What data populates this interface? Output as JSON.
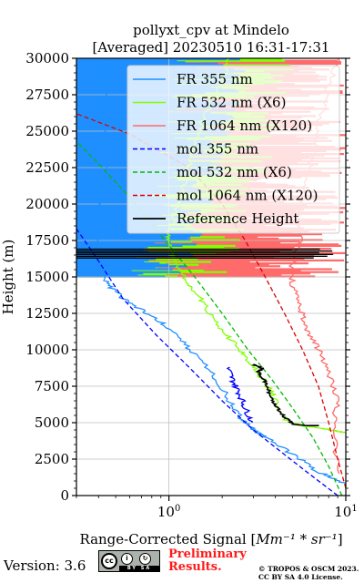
{
  "chart_data": {
    "type": "line",
    "title": "pollyxt_cpv at Mindelo",
    "subtitle": "[Averaged] 20230510 16:31-17:31",
    "xlabel": "Range-Corrected Signal [",
    "xlabel_math": "Mm⁻¹ * sr⁻¹",
    "xlabel_close": "]",
    "ylabel": "Height (m)",
    "xscale": "log",
    "xlim": [
      0.3,
      10
    ],
    "ylim": [
      0,
      30000
    ],
    "x_ticks": [
      {
        "base": "10",
        "exp": "0",
        "value": 1
      },
      {
        "base": "10",
        "exp": "1",
        "value": 10
      }
    ],
    "y_ticks": [
      "0",
      "2500",
      "5000",
      "7500",
      "10000",
      "12500",
      "15000",
      "17500",
      "20000",
      "22500",
      "25000",
      "27500",
      "30000"
    ],
    "grid": true,
    "legend_position": "top-right",
    "colors": {
      "fr355": "#1f8fff",
      "fr532": "#80ff00",
      "fr1064": "#ff6a6a",
      "mol355": "#0000ff",
      "mol532": "#00bb00",
      "mol1064": "#dd0000",
      "reference": "#000000"
    },
    "series": [
      {
        "name": "FR 355 nm",
        "key": "fr355",
        "style": "solid",
        "points": [
          [
            10,
            800
          ],
          [
            7,
            1600
          ],
          [
            5,
            2800
          ],
          [
            3.5,
            4000
          ],
          [
            3,
            4500
          ],
          [
            2.6,
            5200
          ],
          [
            2.2,
            6500
          ],
          [
            1.8,
            8200
          ],
          [
            1.3,
            10000
          ],
          [
            1.0,
            11500
          ],
          [
            0.75,
            12500
          ],
          [
            0.55,
            13500
          ],
          [
            0.45,
            14500
          ],
          [
            0.4,
            15500
          ],
          [
            0.38,
            16500
          ],
          [
            0.4,
            18000
          ],
          [
            0.42,
            20000
          ],
          [
            0.45,
            22000
          ],
          [
            0.45,
            24000
          ],
          [
            0.45,
            26000
          ],
          [
            0.45,
            28000
          ],
          [
            0.45,
            30000
          ]
        ]
      },
      {
        "name": "FR 532 nm (X6)",
        "key": "fr532",
        "style": "solid",
        "points": [
          [
            10,
            4300
          ],
          [
            7.5,
            4600
          ],
          [
            5.5,
            4800
          ],
          [
            4.5,
            5200
          ],
          [
            4,
            6500
          ],
          [
            3.5,
            7800
          ],
          [
            3,
            8800
          ],
          [
            2.6,
            9800
          ],
          [
            2.1,
            11000
          ],
          [
            1.7,
            12500
          ],
          [
            1.4,
            14000
          ],
          [
            1.2,
            15000
          ],
          [
            1.1,
            16000
          ],
          [
            1.0,
            17000
          ],
          [
            1.0,
            18000
          ],
          [
            1.1,
            19500
          ],
          [
            1.2,
            21000
          ],
          [
            1.3,
            22500
          ],
          [
            1.4,
            24000
          ],
          [
            1.6,
            26000
          ],
          [
            1.9,
            28000
          ],
          [
            2.2,
            30000
          ]
        ]
      },
      {
        "name": "FR 1064 nm (X120)",
        "key": "fr1064",
        "style": "solid",
        "points": [
          [
            9,
            1500
          ],
          [
            8.5,
            4500
          ],
          [
            9,
            6500
          ],
          [
            8,
            8500
          ],
          [
            7,
            10000
          ],
          [
            6,
            11500
          ],
          [
            5.5,
            13000
          ],
          [
            5,
            14500
          ],
          [
            5,
            16000
          ],
          [
            5.5,
            17500
          ],
          [
            5.5,
            19500
          ],
          [
            6,
            21500
          ],
          [
            6.5,
            23500
          ],
          [
            7,
            25500
          ],
          [
            8,
            28000
          ],
          [
            9,
            30000
          ]
        ]
      },
      {
        "name": "mol 355 nm",
        "key": "mol355",
        "style": "dashed",
        "points": [
          [
            9,
            0
          ],
          [
            6.2,
            1500
          ],
          [
            4.3,
            3000
          ],
          [
            3.0,
            4500
          ],
          [
            2.0,
            6500
          ],
          [
            1.3,
            8800
          ],
          [
            0.85,
            11000
          ],
          [
            0.55,
            13500
          ],
          [
            0.38,
            16500
          ],
          [
            0.3,
            18300
          ]
        ]
      },
      {
        "name": "mol 532 nm (X6)",
        "key": "mol532",
        "style": "dashed",
        "points": [
          [
            9.5,
            0
          ],
          [
            8,
            2000
          ],
          [
            6.5,
            4000
          ],
          [
            5,
            6000
          ],
          [
            3.8,
            8000
          ],
          [
            2.8,
            10000
          ],
          [
            2.0,
            12500
          ],
          [
            1.4,
            15000
          ],
          [
            0.95,
            17500
          ],
          [
            0.65,
            20000
          ],
          [
            0.42,
            22500
          ],
          [
            0.3,
            24300
          ]
        ]
      },
      {
        "name": "mol 1064 nm (X120)",
        "key": "mol1064",
        "style": "dashed",
        "points": [
          [
            10,
            500
          ],
          [
            9,
            2500
          ],
          [
            8,
            5000
          ],
          [
            7,
            7500
          ],
          [
            5.7,
            10000
          ],
          [
            4.5,
            12500
          ],
          [
            3.5,
            15000
          ],
          [
            2.7,
            17500
          ],
          [
            2.0,
            20000
          ],
          [
            1.3,
            22500
          ],
          [
            0.6,
            24800
          ],
          [
            0.3,
            26200
          ]
        ]
      },
      {
        "name": "Reference Height",
        "key": "reference",
        "style": "solid",
        "points": [
          [
            7,
            4800
          ],
          [
            6,
            4800
          ],
          [
            5,
            4900
          ],
          [
            4.5,
            5400
          ],
          [
            4,
            6200
          ],
          [
            3.7,
            7000
          ],
          [
            3.5,
            7800
          ],
          [
            3.2,
            8500
          ],
          [
            3.4,
            8700
          ],
          [
            3.0,
            9000
          ]
        ]
      },
      {
        "name": "",
        "key": "mol355",
        "style": "solid",
        "points": [
          [
            2.15,
            8800
          ],
          [
            2.3,
            7900
          ],
          [
            2.5,
            7000
          ],
          [
            2.7,
            6000
          ],
          [
            2.95,
            5000
          ]
        ]
      }
    ],
    "fr_layers": {
      "fr1064_fill_top": 30000,
      "fr532_fill_top": 30000,
      "fr355_fill_top": 30000
    },
    "reference_band": [
      16300,
      17000
    ]
  },
  "footer": {
    "version": "Version: 3.6",
    "license_badge": "cc",
    "badge_strip": "BY SA",
    "preliminary_line1": "Preliminary",
    "preliminary_line2": "Results.",
    "copyright_line1": "© TROPOS & OSCM 2023.",
    "copyright_line2": "CC BY SA 4.0 License."
  }
}
